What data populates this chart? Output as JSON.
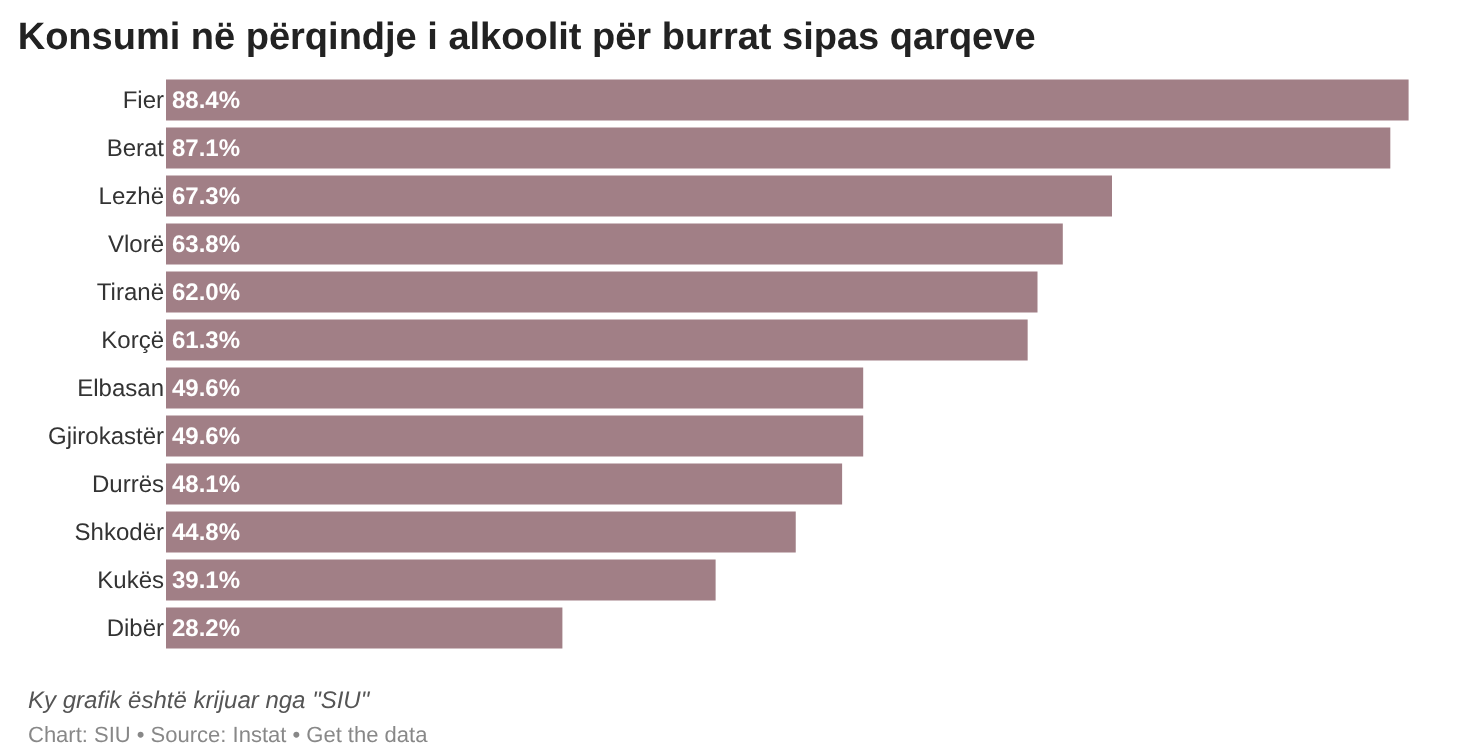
{
  "chart_data": {
    "type": "bar",
    "orientation": "horizontal",
    "title": "Konsumi në përqindje i alkoolit për burrat sipas qarqeve",
    "categories": [
      "Fier",
      "Berat",
      "Lezhë",
      "Vlorë",
      "Tiranë",
      "Korçë",
      "Elbasan",
      "Gjirokastër",
      "Durrës",
      "Shkodër",
      "Kukës",
      "Dibër"
    ],
    "values": [
      88.4,
      87.1,
      67.3,
      63.8,
      62.0,
      61.3,
      49.6,
      49.6,
      48.1,
      44.8,
      39.1,
      28.2
    ],
    "value_labels": [
      "88.4%",
      "87.1%",
      "67.3%",
      "63.8%",
      "62.0%",
      "61.3%",
      "49.6%",
      "49.6%",
      "48.1%",
      "44.8%",
      "39.1%",
      "28.2%"
    ],
    "color": "#a17f86",
    "annotations": [
      "Ky grafik është krijuar nga \"SIU\"",
      "Chart: SIU • Source: Instat • Get the data"
    ]
  }
}
